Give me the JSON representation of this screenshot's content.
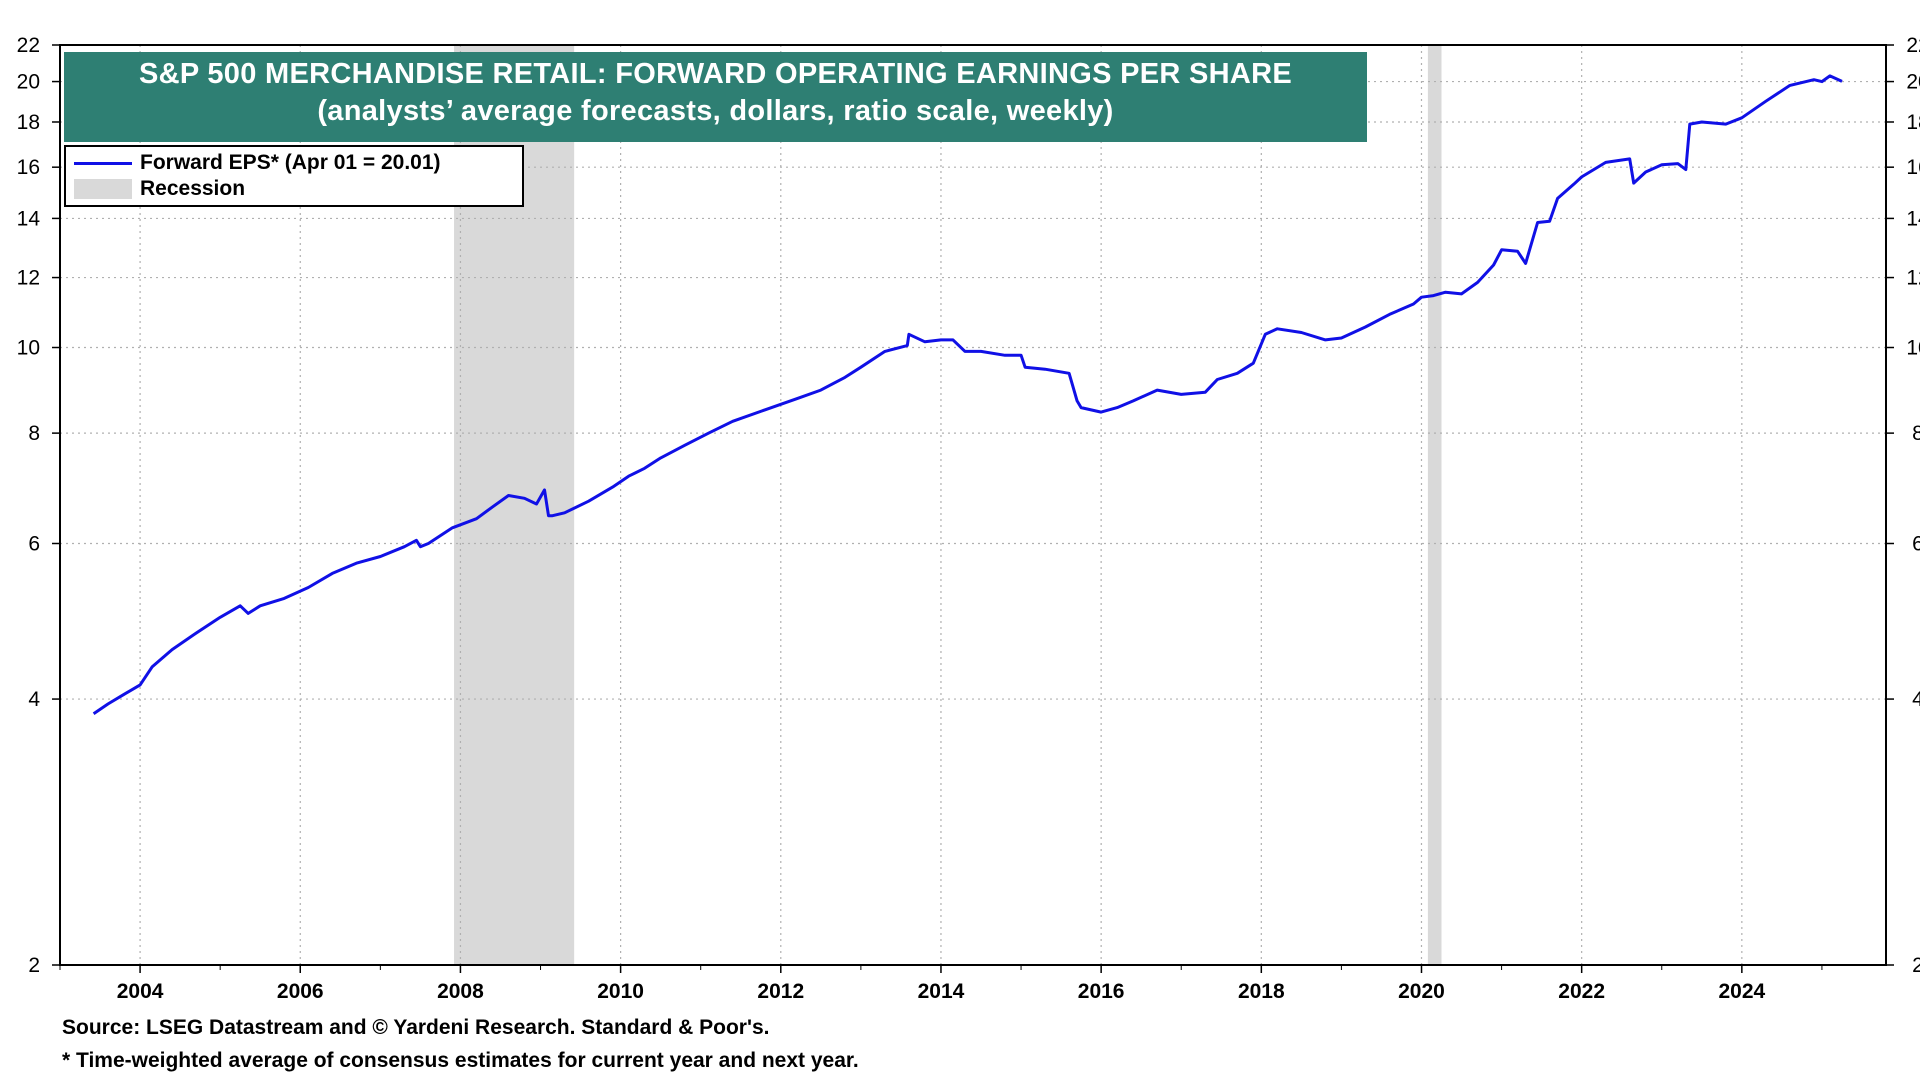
{
  "chart_data": {
    "type": "line",
    "title": "S&P 500 MERCHANDISE RETAIL: FORWARD OPERATING EARNINGS PER SHARE",
    "subtitle": "(analysts’ average forecasts, dollars, ratio scale, weekly)",
    "y_scale": "log",
    "ylim": [
      2,
      22
    ],
    "xlim": [
      2003.0,
      2025.8
    ],
    "y_ticks": [
      2,
      4,
      6,
      8,
      10,
      12,
      14,
      16,
      18,
      20,
      22
    ],
    "x_ticks": [
      2004,
      2006,
      2008,
      2010,
      2012,
      2014,
      2016,
      2018,
      2020,
      2022,
      2024
    ],
    "grid": true,
    "legend_position": "top-left",
    "series": [
      {
        "name": "Forward EPS* (Apr 01 = 20.01)",
        "color": "#1010e6",
        "x": [
          2003.42,
          2003.6,
          2003.8,
          2004.0,
          2004.15,
          2004.4,
          2004.7,
          2005.0,
          2005.25,
          2005.35,
          2005.5,
          2005.8,
          2006.1,
          2006.4,
          2006.7,
          2007.0,
          2007.3,
          2007.45,
          2007.5,
          2007.6,
          2007.9,
          2008.2,
          2008.4,
          2008.6,
          2008.8,
          2008.95,
          2009.05,
          2009.1,
          2009.15,
          2009.3,
          2009.6,
          2009.9,
          2010.1,
          2010.3,
          2010.5,
          2010.8,
          2011.1,
          2011.4,
          2011.8,
          2012.2,
          2012.5,
          2012.8,
          2013.0,
          2013.3,
          2013.58,
          2013.6,
          2013.8,
          2014.0,
          2014.15,
          2014.3,
          2014.5,
          2014.8,
          2015.0,
          2015.05,
          2015.3,
          2015.6,
          2015.7,
          2015.75,
          2016.0,
          2016.2,
          2016.4,
          2016.7,
          2017.0,
          2017.3,
          2017.45,
          2017.7,
          2017.9,
          2018.05,
          2018.2,
          2018.5,
          2018.8,
          2019.0,
          2019.3,
          2019.6,
          2019.9,
          2020.0,
          2020.15,
          2020.3,
          2020.5,
          2020.7,
          2020.9,
          2021.0,
          2021.2,
          2021.3,
          2021.45,
          2021.6,
          2021.7,
          2021.9,
          2022.0,
          2022.3,
          2022.6,
          2022.65,
          2022.8,
          2023.0,
          2023.2,
          2023.3,
          2023.35,
          2023.5,
          2023.8,
          2024.0,
          2024.3,
          2024.6,
          2024.9,
          2025.0,
          2025.1,
          2025.25
        ],
        "values": [
          3.85,
          3.95,
          4.05,
          4.15,
          4.35,
          4.55,
          4.75,
          4.95,
          5.1,
          5.0,
          5.1,
          5.2,
          5.35,
          5.55,
          5.7,
          5.8,
          5.95,
          6.05,
          5.95,
          6.0,
          6.25,
          6.4,
          6.6,
          6.8,
          6.75,
          6.65,
          6.9,
          6.45,
          6.45,
          6.5,
          6.7,
          6.95,
          7.15,
          7.3,
          7.5,
          7.75,
          8.0,
          8.25,
          8.5,
          8.75,
          8.95,
          9.25,
          9.5,
          9.9,
          10.05,
          10.35,
          10.15,
          10.2,
          10.2,
          9.9,
          9.9,
          9.8,
          9.8,
          9.5,
          9.45,
          9.35,
          8.7,
          8.55,
          8.45,
          8.55,
          8.7,
          8.95,
          8.85,
          8.9,
          9.2,
          9.35,
          9.6,
          10.35,
          10.5,
          10.4,
          10.2,
          10.25,
          10.55,
          10.9,
          11.2,
          11.4,
          11.45,
          11.55,
          11.5,
          11.85,
          12.4,
          12.9,
          12.85,
          12.45,
          13.85,
          13.9,
          14.75,
          15.3,
          15.6,
          16.2,
          16.35,
          15.35,
          15.8,
          16.1,
          16.15,
          15.9,
          17.9,
          18.0,
          17.9,
          18.2,
          19.0,
          19.8,
          20.1,
          20.0,
          20.3,
          20.01
        ]
      }
    ],
    "recessions": [
      [
        2007.92,
        2009.42
      ],
      [
        2020.08,
        2020.25
      ]
    ],
    "recession_label": "Recession",
    "colors": {
      "line": "#1010e6",
      "recession": "#d9d9d9",
      "title_bg": "#2e7f73",
      "grid": "#b0b0b0"
    }
  },
  "footnotes": {
    "source": "Source: LSEG Datastream and © Yardeni Research. Standard & Poor's.",
    "note": "* Time-weighted average of consensus estimates for current year and next year."
  }
}
